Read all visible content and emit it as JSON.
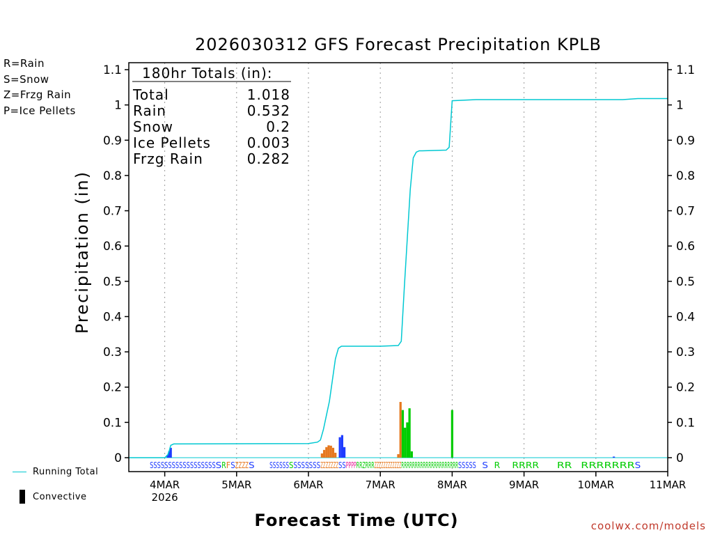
{
  "colors": {
    "rain": "#00cc00",
    "snow": "#1e3cff",
    "frzg_rain": "#e6781e",
    "ice_pellets": "#e61e96",
    "running_total": "#00c8d2",
    "credit": "#c0392b"
  },
  "key": [
    {
      "label": "R=Rain",
      "color": "#00cc00"
    },
    {
      "label": "S=Snow",
      "color": "#1e3cff"
    },
    {
      "label": "Z=Frzg Rain",
      "color": "#e6781e"
    },
    {
      "label": "P=Ice Pellets",
      "color": "#e61e96"
    }
  ],
  "bottom_legend": {
    "running_total": "Running Total",
    "convective": "Convective"
  },
  "credit": "coolwx.com/models",
  "chart_data": {
    "type": "bar",
    "title": "2026030312 GFS Forecast Precipitation KPLB",
    "xlabel": "Forecast Time (UTC)",
    "ylabel": "Precipitation (in)",
    "xlim_hours": [
      0,
      180
    ],
    "ylim": [
      0,
      1.1
    ],
    "yticks": [
      0,
      0.1,
      0.2,
      0.3,
      0.4,
      0.5,
      0.6,
      0.7,
      0.8,
      0.9,
      1,
      1.1
    ],
    "ytick_labels": [
      "0",
      "0.1",
      "0.2",
      "0.3",
      "0.4",
      "0.5",
      "0.6",
      "0.7",
      "0.8",
      "0.9",
      "1",
      "1.1"
    ],
    "xticks": [
      {
        "hour": 12,
        "label": "4MAR",
        "sublabel": "2026"
      },
      {
        "hour": 36,
        "label": "5MAR"
      },
      {
        "hour": 60,
        "label": "6MAR"
      },
      {
        "hour": 84,
        "label": "7MAR"
      },
      {
        "hour": 108,
        "label": "8MAR"
      },
      {
        "hour": 132,
        "label": "9MAR"
      },
      {
        "hour": 156,
        "label": "10MAR"
      },
      {
        "hour": 180,
        "label": "11MAR"
      }
    ],
    "totals_box": {
      "heading": "180hr Totals (in):",
      "rows": [
        {
          "label": "Total",
          "value": "1.018"
        },
        {
          "label": "Rain",
          "value": "0.532"
        },
        {
          "label": "Snow",
          "value": "0.2"
        },
        {
          "label": "Ice Pellets",
          "value": "0.003"
        },
        {
          "label": "Frzg Rain",
          "value": "0.282"
        }
      ]
    },
    "running_total": {
      "hours": [
        0,
        12,
        13,
        13.5,
        14,
        15,
        60,
        63,
        64,
        65,
        66,
        67,
        68,
        69,
        70,
        71,
        72,
        84,
        90,
        91,
        92,
        93,
        94,
        95,
        96,
        97,
        98,
        106,
        107,
        108,
        116,
        165,
        170,
        180
      ],
      "values": [
        0,
        0,
        0.008,
        0.02,
        0.035,
        0.039,
        0.04,
        0.044,
        0.05,
        0.08,
        0.12,
        0.16,
        0.22,
        0.28,
        0.31,
        0.316,
        0.316,
        0.316,
        0.318,
        0.33,
        0.48,
        0.62,
        0.76,
        0.85,
        0.866,
        0.87,
        0.87,
        0.872,
        0.88,
        1.012,
        1.015,
        1.015,
        1.018,
        1.018
      ]
    },
    "series": [
      {
        "name": "Snow",
        "type": "snow",
        "hours": [
          13,
          13.5,
          14,
          70.5,
          71.25,
          72,
          162
        ],
        "values": [
          0.008,
          0.018,
          0.028,
          0.058,
          0.064,
          0.03,
          0.003
        ]
      },
      {
        "name": "Frzg Rain",
        "type": "frzg_rain",
        "hours": [
          64.5,
          65.25,
          66,
          66.75,
          67.5,
          68.25,
          69,
          90,
          90.75
        ],
        "values": [
          0.012,
          0.022,
          0.03,
          0.035,
          0.034,
          0.028,
          0.014,
          0.01,
          0.158
        ]
      },
      {
        "name": "Rain",
        "type": "rain",
        "hours": [
          91.5,
          92.25,
          93,
          93.75,
          94.5,
          108
        ],
        "values": [
          0.135,
          0.085,
          0.1,
          0.14,
          0.018,
          0.135
        ]
      }
    ],
    "ptype_strip": [
      {
        "text": "SSSSSSSSSSSSSSSSSS",
        "type": "snow",
        "start_hour": 7,
        "end_hour": 29
      },
      {
        "text": "S",
        "type": "snow",
        "start_hour": 29,
        "end_hour": 31
      },
      {
        "text": "R",
        "type": "rain",
        "start_hour": 31,
        "end_hour": 32.5
      },
      {
        "text": "F",
        "type": "frzg_rain",
        "start_hour": 32.5,
        "end_hour": 34
      },
      {
        "text": "S",
        "type": "snow",
        "start_hour": 34,
        "end_hour": 35.5
      },
      {
        "text": "ZZZZ",
        "type": "frzg_rain",
        "start_hour": 35.5,
        "end_hour": 40
      },
      {
        "text": "S",
        "type": "snow",
        "start_hour": 40,
        "end_hour": 42
      },
      {
        "text": "SSSSSS",
        "type": "snow",
        "start_hour": 47,
        "end_hour": 53.5
      },
      {
        "text": "S",
        "type": "rain",
        "start_hour": 53.5,
        "end_hour": 55
      },
      {
        "text": "SSSSSSS",
        "type": "snow",
        "start_hour": 55,
        "end_hour": 64
      },
      {
        "text": "ZZZZZZZ",
        "type": "frzg_rain",
        "start_hour": 64,
        "end_hour": 70
      },
      {
        "text": "SS",
        "type": "snow",
        "start_hour": 70,
        "end_hour": 72.5
      },
      {
        "text": "PPPP",
        "type": "ice_pellets",
        "start_hour": 72.5,
        "end_hour": 76
      },
      {
        "text": "RR",
        "type": "rain",
        "start_hour": 76,
        "end_hour": 78
      },
      {
        "text": "ZRRR",
        "type": "rain",
        "start_hour": 78,
        "end_hour": 82
      },
      {
        "text": "ZZZZZZZZZZZZ",
        "type": "frzg_rain",
        "start_hour": 82,
        "end_hour": 91
      },
      {
        "text": "RRRRRRRRRRRRRRRRRRRRR",
        "type": "rain",
        "start_hour": 91,
        "end_hour": 110
      },
      {
        "text": "SSSSS",
        "type": "snow",
        "start_hour": 110,
        "end_hour": 116
      },
      {
        "text": "S",
        "type": "snow",
        "start_hour": 118,
        "end_hour": 120
      },
      {
        "text": "R",
        "type": "rain",
        "start_hour": 122,
        "end_hour": 124
      },
      {
        "text": "RRRR",
        "type": "rain",
        "start_hour": 128,
        "end_hour": 137
      },
      {
        "text": "RR",
        "type": "rain",
        "start_hour": 143,
        "end_hour": 148
      },
      {
        "text": "RRRRRRR",
        "type": "rain",
        "start_hour": 151,
        "end_hour": 169
      },
      {
        "text": "S",
        "type": "snow",
        "start_hour": 169,
        "end_hour": 171
      }
    ]
  }
}
